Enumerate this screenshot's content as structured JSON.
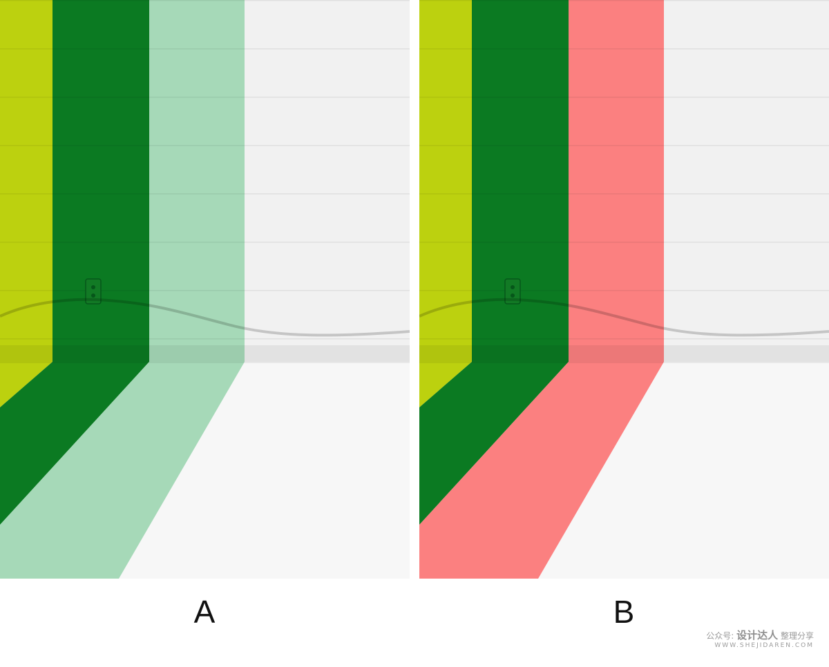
{
  "captions": {
    "left": "A",
    "right": "B"
  },
  "watermark": {
    "prefix": "公众号:",
    "brand": "设计达人",
    "suffix": "整理分享",
    "url": "WWW.SHEJIDAREN.COM"
  },
  "colors": {
    "lime": "#bcd10f",
    "dark_green": "#0b7a22",
    "mint": "#a6d9b8",
    "coral": "#fb8080",
    "wall_white": "#f1f1f1",
    "floor_white": "#f7f7f7"
  }
}
